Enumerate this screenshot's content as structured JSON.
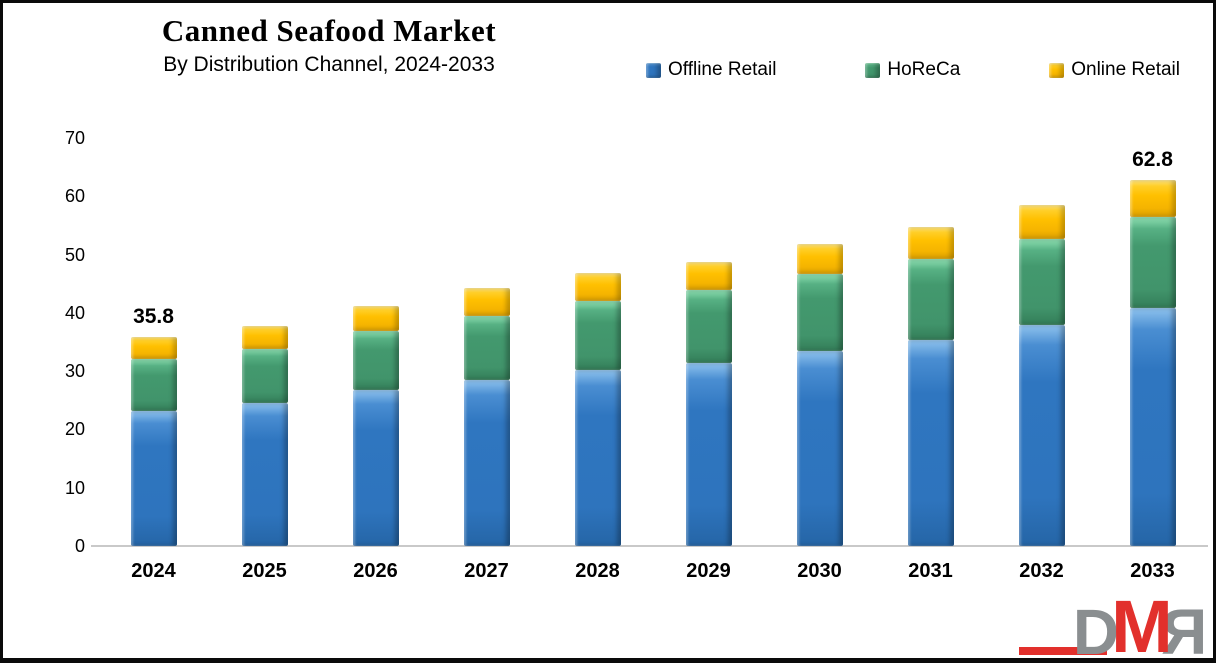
{
  "title": "Canned Seafood Market",
  "subtitle": "By Distribution Channel, 2024-2033",
  "legend": [
    {
      "label": "Offline Retail",
      "color": "#2E74BD"
    },
    {
      "label": "HoReCa",
      "color": "#43996E"
    },
    {
      "label": "Online Retail",
      "color": "#FFC000"
    }
  ],
  "chart_data": {
    "type": "bar",
    "stacked": true,
    "title": "Canned Seafood Market",
    "subtitle": "By Distribution Channel, 2024-2033",
    "categories": [
      "2024",
      "2025",
      "2026",
      "2027",
      "2028",
      "2029",
      "2030",
      "2031",
      "2032",
      "2033"
    ],
    "series": [
      {
        "name": "Offline Retail",
        "color": "#2E74BD",
        "values": [
          23.2,
          24.5,
          26.7,
          28.5,
          30.2,
          31.4,
          33.5,
          35.4,
          38.0,
          40.8
        ]
      },
      {
        "name": "HoReCa",
        "color": "#43996E",
        "values": [
          8.9,
          9.3,
          10.2,
          11.0,
          11.8,
          12.5,
          13.1,
          13.8,
          14.6,
          15.7
        ]
      },
      {
        "name": "Online Retail",
        "color": "#FFC000",
        "values": [
          3.7,
          3.9,
          4.2,
          4.7,
          4.8,
          4.9,
          5.2,
          5.6,
          5.9,
          6.3
        ]
      }
    ],
    "data_labels": {
      "2024": "35.8",
      "2033": "62.8"
    },
    "yticks": [
      0,
      10,
      20,
      30,
      40,
      50,
      60,
      70
    ],
    "ylim": [
      0,
      70
    ],
    "grid": false,
    "legend_position": "top-right",
    "xlabel": "",
    "ylabel": ""
  },
  "logo": {
    "letters": [
      {
        "char": "D",
        "mirrored": false
      },
      {
        "char": "M",
        "mirrored": false
      },
      {
        "char": "R",
        "mirrored": true
      }
    ],
    "gray": "#8A8E90",
    "red": "#E2302C"
  }
}
